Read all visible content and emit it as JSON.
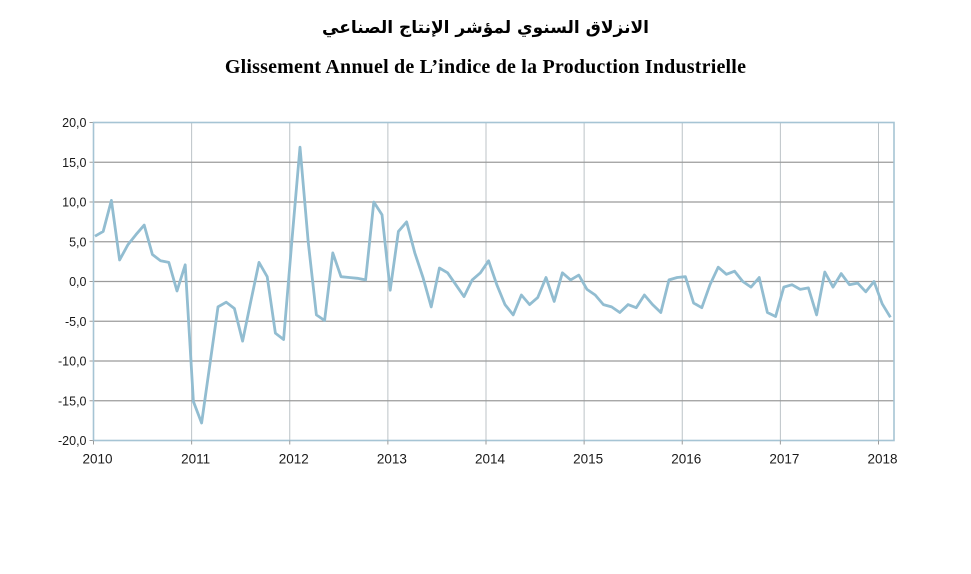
{
  "titles": {
    "arabic": "الانزلاق السنوي لمؤشر الإنتاج الصناعي",
    "french": "Glissement Annuel de L’indice de la Production Industrielle"
  },
  "chart_data": {
    "type": "line",
    "frequency": "monthly",
    "start_period": "2010-01",
    "end_period": "2018-02",
    "x_tick_labels": [
      "2010",
      "2011",
      "2012",
      "2013",
      "2014",
      "2015",
      "2016",
      "2017",
      "2018"
    ],
    "y_ticks": [
      20,
      15,
      10,
      5,
      0,
      -5,
      -10,
      -15,
      -20
    ],
    "y_tick_labels": [
      "20,0",
      "15,0",
      "10,0",
      "5,0",
      "0,0",
      "-5,0",
      "-10,0",
      "-15,0",
      "-20,0"
    ],
    "ylim": [
      -20,
      20
    ],
    "grid": true,
    "legend": "none",
    "colors": {
      "line": "#92bdd1",
      "grid_horizontal": "#9b9b9b",
      "grid_vertical": "#bcc3c7",
      "plot_border": "#a6c4d4",
      "text": "#1a1a1a"
    },
    "values": [
      5.7,
      6.3,
      10.2,
      2.7,
      4.6,
      5.9,
      7.1,
      3.4,
      2.6,
      2.4,
      -1.2,
      2.1,
      -15.1,
      -17.8,
      -10.5,
      -3.2,
      -2.6,
      -3.4,
      -7.5,
      -2.5,
      2.4,
      0.6,
      -6.5,
      -7.3,
      5.0,
      16.9,
      5.0,
      -4.2,
      -4.9,
      3.6,
      0.6,
      0.5,
      0.4,
      0.2,
      10.0,
      8.4,
      -1.1,
      6.3,
      7.5,
      3.6,
      0.5,
      -3.2,
      1.7,
      1.1,
      -0.4,
      -1.9,
      0.2,
      1.1,
      2.6,
      -0.4,
      -2.9,
      -4.2,
      -1.7,
      -2.9,
      -2.0,
      0.5,
      -2.5,
      1.1,
      0.2,
      0.8,
      -1.0,
      -1.7,
      -2.9,
      -3.2,
      -3.9,
      -2.9,
      -3.3,
      -1.7,
      -2.9,
      -3.9,
      0.2,
      0.5,
      0.6,
      -2.7,
      -3.3,
      -0.4,
      1.8,
      0.9,
      1.3,
      0.0,
      -0.7,
      0.5,
      -3.9,
      -4.4,
      -0.7,
      -0.4,
      -1.0,
      -0.8,
      -4.2,
      1.2,
      -0.7,
      1.0,
      -0.4,
      -0.2,
      -1.3,
      0.0,
      -2.8,
      -4.5
    ]
  }
}
